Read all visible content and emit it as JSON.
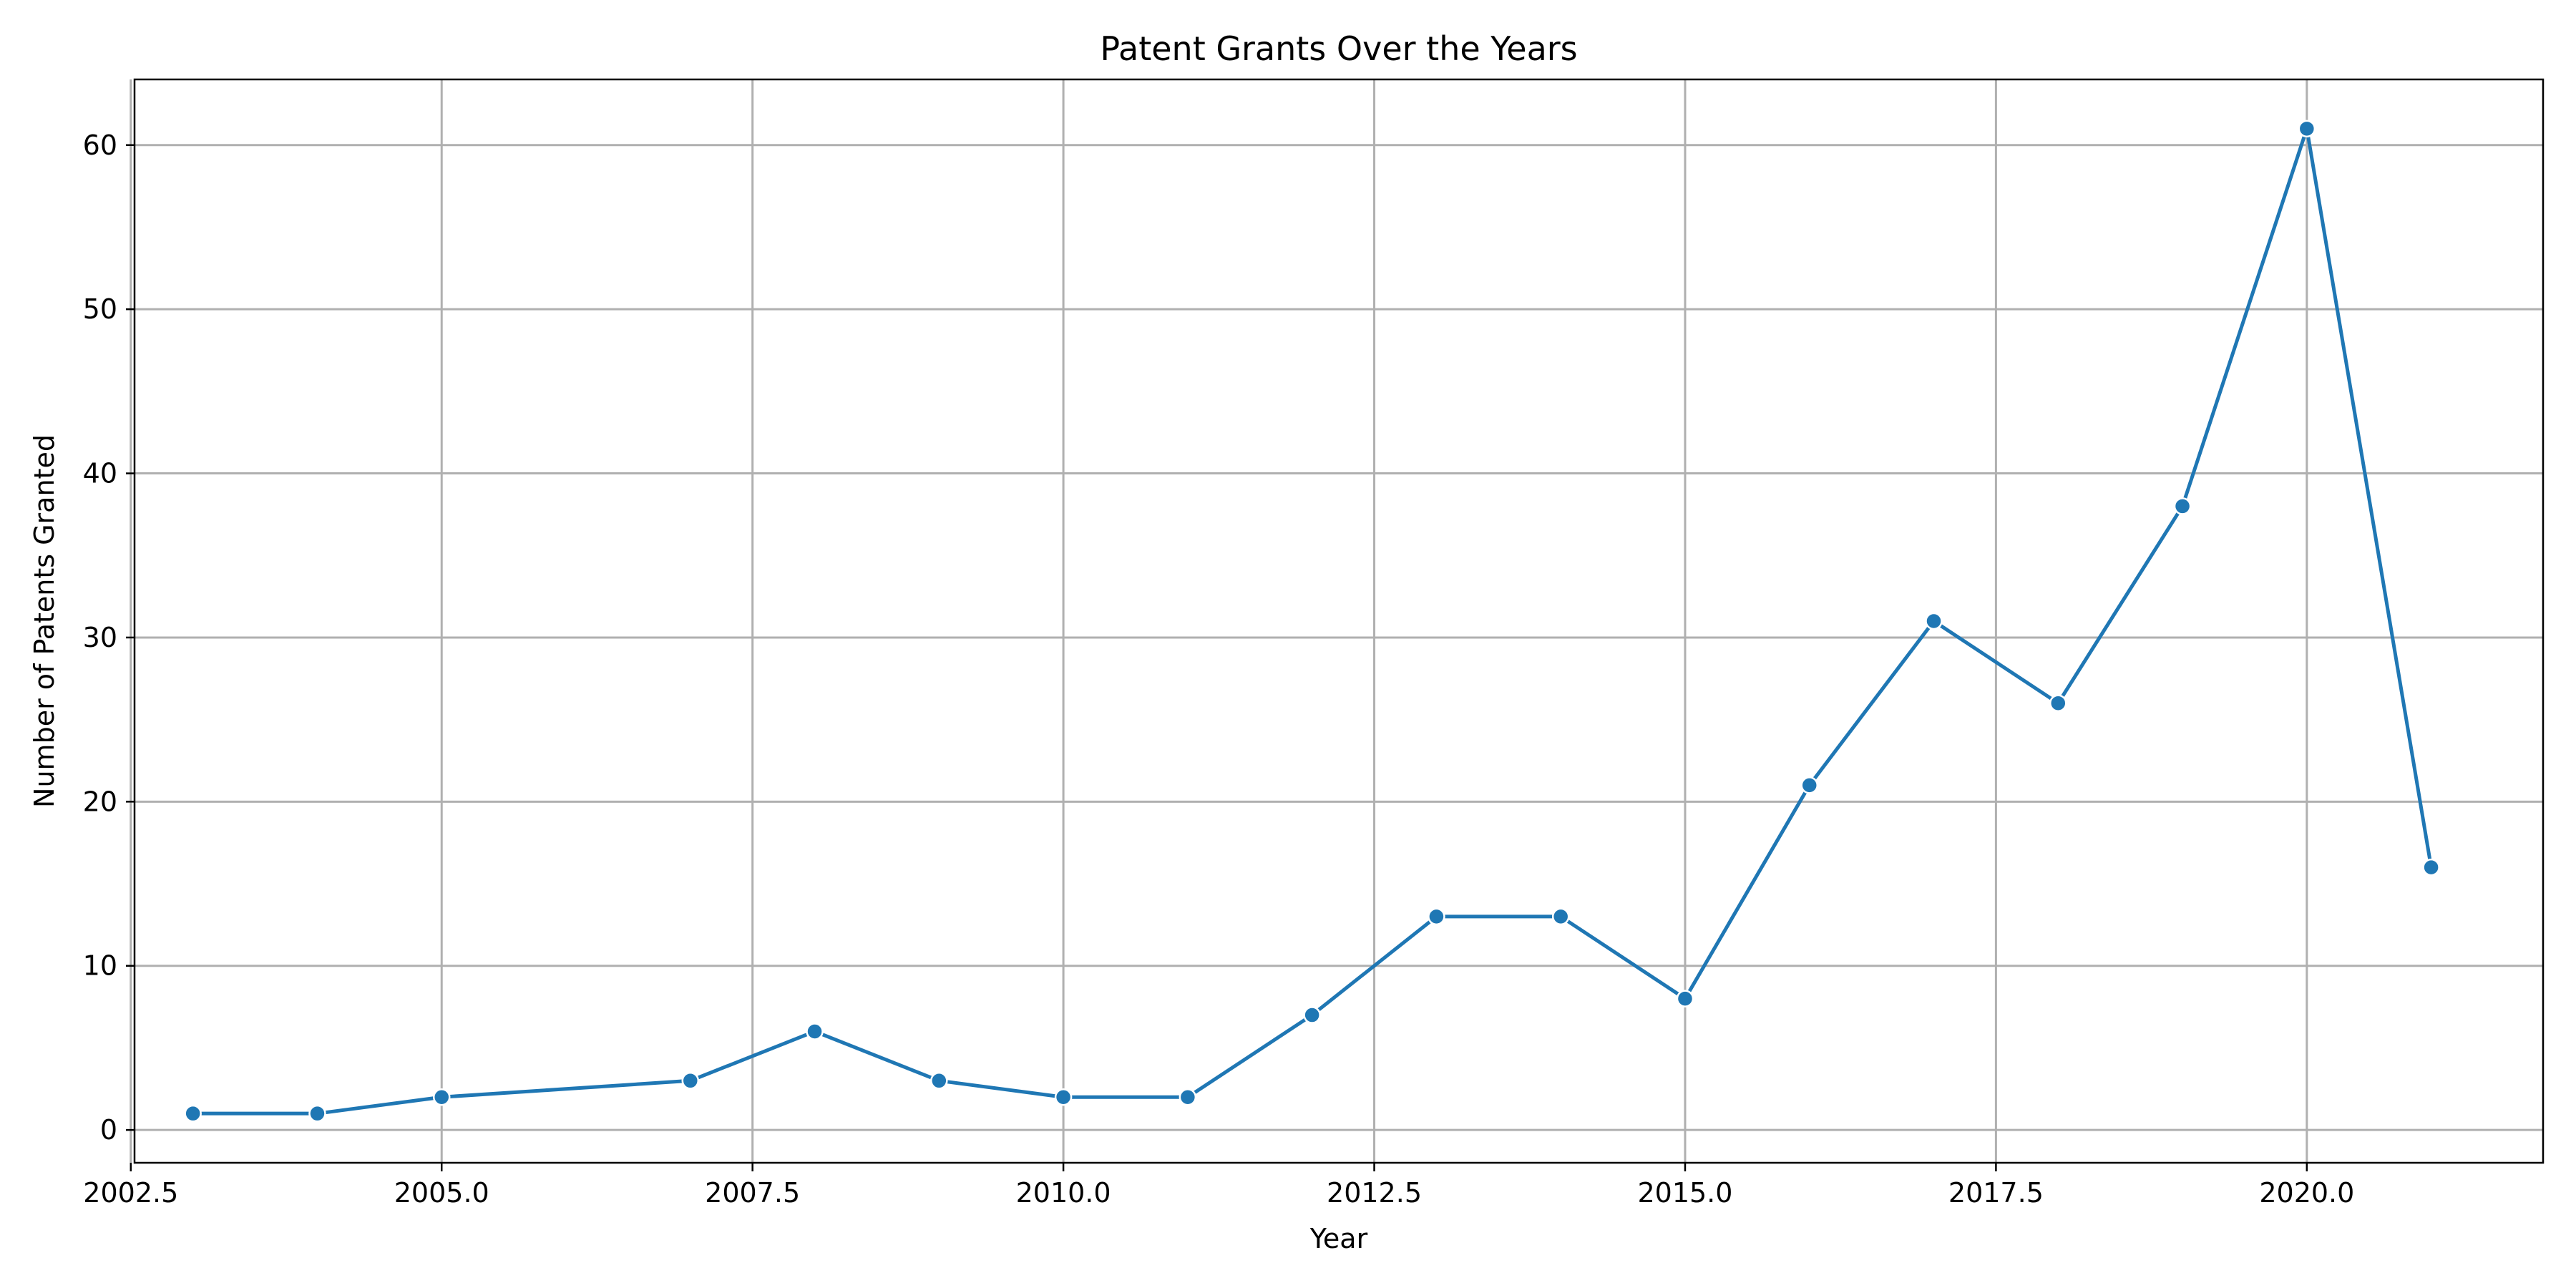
{
  "chart_data": {
    "type": "line",
    "title": "Patent Grants Over the Years",
    "xlabel": "Year",
    "ylabel": "Number of Patents Granted",
    "xlim": [
      2002.53,
      2021.9
    ],
    "ylim": [
      -2,
      64
    ],
    "x_ticks": [
      2002.5,
      2005.0,
      2007.5,
      2010.0,
      2012.5,
      2015.0,
      2017.5,
      2020.0
    ],
    "x_tick_labels": [
      "2002.5",
      "2005.0",
      "2007.5",
      "2010.0",
      "2012.5",
      "2015.0",
      "2017.5",
      "2020.0"
    ],
    "y_ticks": [
      0,
      10,
      20,
      30,
      40,
      50,
      60
    ],
    "y_tick_labels": [
      "0",
      "10",
      "20",
      "30",
      "40",
      "50",
      "60"
    ],
    "grid": true,
    "series": [
      {
        "color": "#1f77b4",
        "marker": "circle",
        "x": [
          2003,
          2004,
          2005,
          2007,
          2008,
          2009,
          2010,
          2011,
          2012,
          2013,
          2014,
          2015,
          2016,
          2017,
          2018,
          2019,
          2020,
          2021
        ],
        "y": [
          1,
          1,
          2,
          3,
          6,
          3,
          2,
          2,
          7,
          13,
          13,
          8,
          21,
          31,
          26,
          38,
          61,
          16
        ]
      }
    ]
  }
}
